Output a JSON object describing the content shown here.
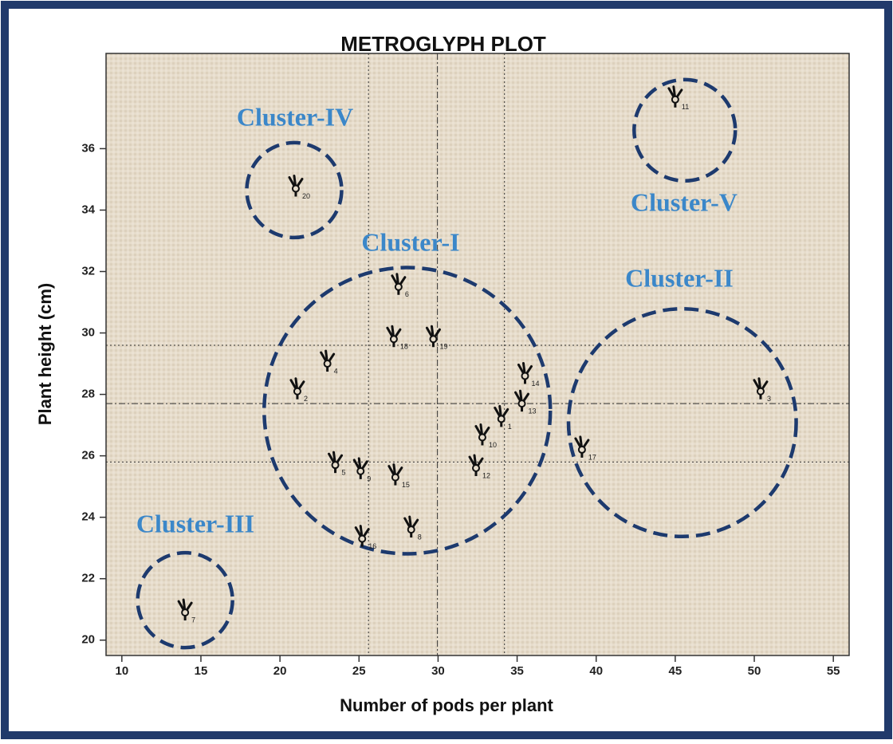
{
  "chart_data": {
    "type": "scatter",
    "title": "METROGLYPH PLOT",
    "x_label": "Number of pods per plant",
    "y_label": "Plant height (cm)",
    "xlim": [
      9,
      56
    ],
    "ylim": [
      19.5,
      39.1
    ],
    "xticks": [
      10,
      15,
      20,
      25,
      30,
      35,
      40,
      45,
      50,
      55
    ],
    "yticks": [
      20,
      22,
      24,
      26,
      28,
      30,
      32,
      34,
      36
    ],
    "color": "#111111",
    "point_labels": [
      "11",
      "20",
      "6",
      "18",
      "19",
      "4",
      "14",
      "2",
      "13",
      "1",
      "3",
      "10",
      "17",
      "5",
      "9",
      "15",
      "12",
      "8",
      "16",
      "7"
    ],
    "x": [
      45.0,
      21.0,
      27.5,
      27.2,
      29.7,
      23.0,
      35.5,
      21.1,
      35.3,
      34.0,
      50.4,
      32.8,
      39.1,
      23.5,
      25.1,
      27.3,
      32.4,
      28.3,
      25.2,
      14.0
    ],
    "y": [
      37.6,
      34.7,
      31.5,
      29.8,
      29.8,
      29.0,
      28.6,
      28.1,
      27.7,
      27.2,
      28.1,
      26.6,
      26.2,
      25.7,
      25.5,
      25.3,
      25.6,
      23.6,
      23.3,
      20.9
    ],
    "reference_lines": {
      "x_dotted": [
        25.6,
        34.2
      ],
      "x_dashdot": 29.96,
      "y_dotted": [
        29.6,
        25.8
      ],
      "y_dashdot": 27.7
    },
    "clusters": [
      {
        "name": "Cluster-I",
        "x": 28.05,
        "y": 27.47,
        "radius": 9.05
      },
      {
        "name": "Cluster-II",
        "x": 45.45,
        "y": 27.08,
        "radius": 7.2
      },
      {
        "name": "Cluster-III",
        "x": 14.0,
        "y": 21.3,
        "radius": 3.0
      },
      {
        "name": "Cluster-IV",
        "x": 20.9,
        "y": 34.65,
        "radius": 3.0
      },
      {
        "name": "Cluster-V",
        "x": 45.6,
        "y": 36.6,
        "radius": 3.2
      }
    ],
    "cluster_color": "#1d3a6e"
  }
}
